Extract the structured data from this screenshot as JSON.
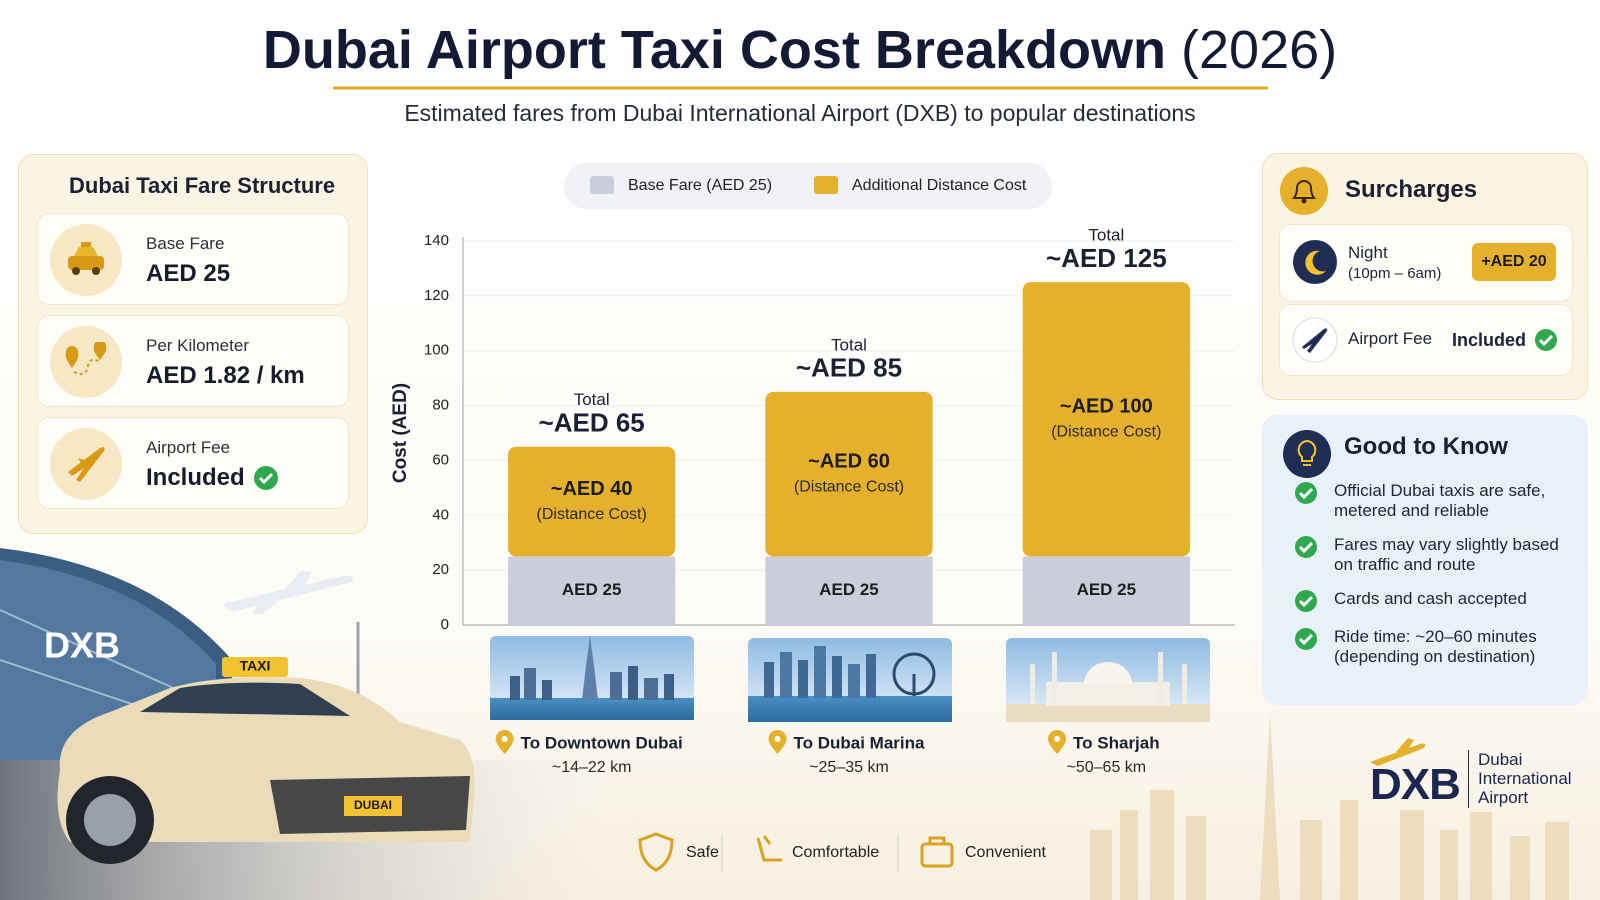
{
  "header": {
    "title": "Dubai Airport Taxi Cost Breakdown",
    "title_year": "(2026)",
    "subtitle": "Estimated fares from Dubai International Airport (DXB) to popular destinations"
  },
  "fare_structure": {
    "title": "Dubai Taxi Fare Structure",
    "items": [
      {
        "label": "Base Fare",
        "value": "AED 25"
      },
      {
        "label": "Per Kilometer",
        "value": "AED 1.82 / km"
      },
      {
        "label": "Airport Fee",
        "value": "Included"
      }
    ]
  },
  "chart_data": {
    "type": "stacked_bar",
    "ylabel": "Cost (AED)",
    "categories": [
      "To Downtown Dubai",
      "To Dubai Marina",
      "To Sharjah"
    ],
    "distances": [
      "~14–22 km",
      "~25–35 km",
      "~50–65 km"
    ],
    "series": [
      {
        "name": "Base Fare (AED 25)",
        "color": "#c9ceda",
        "values": [
          25,
          25,
          25
        ],
        "value_labels": [
          "AED 25",
          "AED 25",
          "AED 25"
        ]
      },
      {
        "name": "Additional Distance Cost",
        "color": "#e5b12d",
        "values": [
          40,
          60,
          100
        ],
        "value_labels": [
          "~AED 40",
          "~AED 60",
          "~AED 100"
        ],
        "note": "(Distance Cost)"
      }
    ],
    "total_caption": "Total",
    "totals": [
      65,
      85,
      125
    ],
    "total_labels": [
      "~AED 65",
      "~AED 85",
      "~AED 125"
    ],
    "ylim": [
      0,
      140
    ],
    "yticks": [
      0,
      20,
      40,
      60,
      80,
      100,
      120,
      140
    ],
    "grid": true,
    "legend": "top"
  },
  "surcharges": {
    "title": "Surcharges",
    "night": {
      "label": "Night",
      "note": "(10pm – 6am)",
      "value": "+AED 20"
    },
    "airport_fee": {
      "label": "Airport Fee",
      "value": "Included"
    }
  },
  "good_to_know": {
    "title": "Good to Know",
    "items": [
      "Official Dubai taxis are safe, metered and reliable",
      "Fares may vary slightly based on traffic and route",
      "Cards and cash accepted",
      "Ride time: ~20–60 minutes (depending on destination)"
    ]
  },
  "features": [
    "Safe",
    "Comfortable",
    "Convenient"
  ],
  "logo": {
    "code": "DXB",
    "name": "Dubai International Airport"
  },
  "illustration": {
    "building_sign": "DXB",
    "taxi_sign": "TAXI",
    "plate": "DUBAI"
  }
}
